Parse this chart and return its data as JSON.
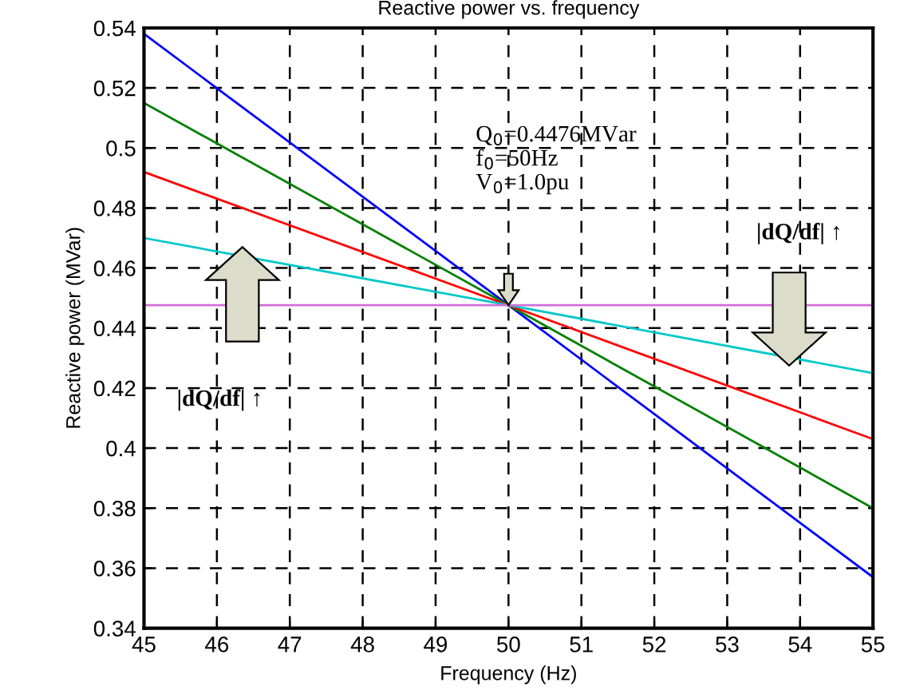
{
  "chart_data": {
    "type": "line",
    "title": "Reactive power vs. frequency",
    "xlabel": "Frequency (Hz)",
    "ylabel": "Reactive power (MVar)",
    "x": [
      45,
      50,
      55
    ],
    "series": [
      {
        "color": "#0000ff",
        "values": [
          0.538,
          0.4476,
          0.357
        ]
      },
      {
        "color": "#008000",
        "values": [
          0.515,
          0.4476,
          0.38
        ]
      },
      {
        "color": "#ff0000",
        "values": [
          0.492,
          0.4476,
          0.403
        ]
      },
      {
        "color": "#00c8c8",
        "values": [
          0.47,
          0.4476,
          0.425
        ]
      },
      {
        "color": "#d070d8",
        "values": [
          0.4476,
          0.4476,
          0.4476
        ]
      }
    ],
    "xlim": [
      45,
      55
    ],
    "xticks": [
      45,
      46,
      47,
      48,
      49,
      50,
      51,
      52,
      53,
      54,
      55
    ],
    "ylim": [
      0.34,
      0.54
    ],
    "yticks": [
      0.34,
      0.36,
      0.38,
      0.4,
      0.42,
      0.44,
      0.46,
      0.48,
      0.5,
      0.52,
      0.54
    ],
    "grid": true,
    "legend": false,
    "marker": "none",
    "line_style": "solid",
    "annotations": [
      "Q$_{0}$=0.4476MVar",
      "f$_{0}$=50Hz",
      "V$_{0}$=1.0pu",
      "|dQ/df| ↑",
      "|dQ/df| ↑"
    ]
  }
}
